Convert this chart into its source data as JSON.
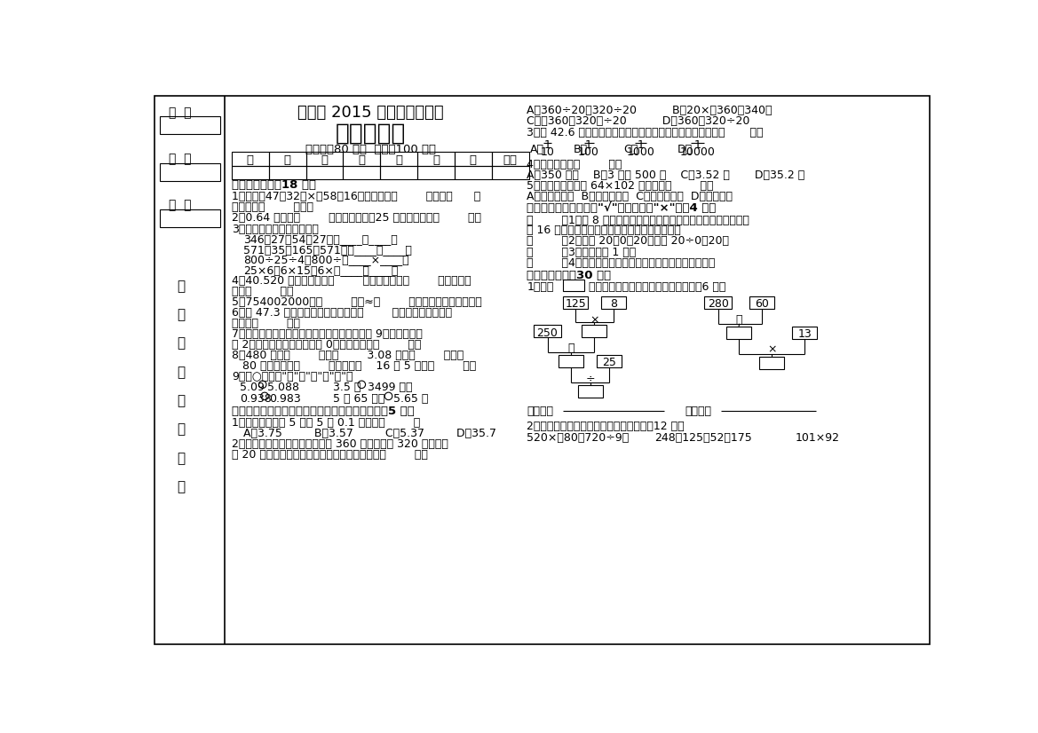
{
  "bg_color": "#ffffff",
  "page_width": 11.69,
  "page_height": 8.26,
  "dpi": 100,
  "font": "SimSun"
}
